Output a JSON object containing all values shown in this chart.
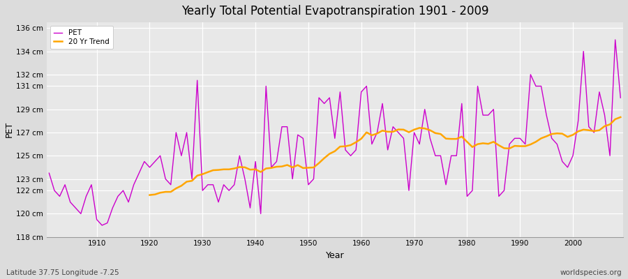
{
  "title": "Yearly Total Potential Evapotranspiration 1901 - 2009",
  "xlabel": "Year",
  "ylabel": "PET",
  "subtitle_left": "Latitude 37.75 Longitude -7.25",
  "subtitle_right": "worldspecies.org",
  "pet_color": "#cc00cc",
  "trend_color": "#ffa500",
  "background_color": "#dcdcdc",
  "plot_bg_color": "#e8e8e8",
  "ylim": [
    118,
    136.5
  ],
  "yticks": [
    118,
    120,
    122,
    123,
    125,
    127,
    129,
    131,
    132,
    134,
    136
  ],
  "xticks": [
    1910,
    1920,
    1930,
    1940,
    1950,
    1960,
    1970,
    1980,
    1990,
    2000
  ],
  "years": [
    1901,
    1902,
    1903,
    1904,
    1905,
    1906,
    1907,
    1908,
    1909,
    1910,
    1911,
    1912,
    1913,
    1914,
    1915,
    1916,
    1917,
    1918,
    1919,
    1920,
    1921,
    1922,
    1923,
    1924,
    1925,
    1926,
    1927,
    1928,
    1929,
    1930,
    1931,
    1932,
    1933,
    1934,
    1935,
    1936,
    1937,
    1938,
    1939,
    1940,
    1941,
    1942,
    1943,
    1944,
    1945,
    1946,
    1947,
    1948,
    1949,
    1950,
    1951,
    1952,
    1953,
    1954,
    1955,
    1956,
    1957,
    1958,
    1959,
    1960,
    1961,
    1962,
    1963,
    1964,
    1965,
    1966,
    1967,
    1968,
    1969,
    1970,
    1971,
    1972,
    1973,
    1974,
    1975,
    1976,
    1977,
    1978,
    1979,
    1980,
    1981,
    1982,
    1983,
    1984,
    1985,
    1986,
    1987,
    1988,
    1989,
    1990,
    1991,
    1992,
    1993,
    1994,
    1995,
    1996,
    1997,
    1998,
    1999,
    2000,
    2001,
    2002,
    2003,
    2004,
    2005,
    2006,
    2007,
    2008,
    2009
  ],
  "pet_values": [
    123.5,
    122.0,
    121.5,
    122.5,
    121.0,
    120.5,
    120.0,
    121.5,
    122.5,
    119.5,
    119.0,
    119.2,
    120.5,
    121.5,
    122.0,
    121.0,
    122.5,
    123.5,
    124.5,
    124.0,
    124.5,
    125.0,
    123.0,
    122.5,
    127.0,
    125.0,
    127.0,
    123.0,
    131.5,
    122.0,
    122.5,
    122.5,
    121.0,
    122.5,
    122.0,
    122.5,
    125.0,
    123.0,
    120.5,
    124.5,
    120.0,
    131.0,
    124.0,
    124.5,
    127.5,
    127.5,
    123.0,
    126.8,
    126.5,
    122.5,
    123.0,
    130.0,
    129.5,
    130.0,
    126.5,
    130.5,
    125.5,
    125.0,
    125.5,
    130.5,
    131.0,
    126.0,
    127.0,
    129.5,
    125.5,
    127.5,
    127.0,
    126.5,
    122.0,
    127.0,
    126.0,
    129.0,
    126.5,
    125.0,
    125.0,
    122.5,
    125.0,
    125.0,
    129.5,
    121.5,
    122.0,
    131.0,
    128.5,
    128.5,
    129.0,
    121.5,
    122.0,
    126.0,
    126.5,
    126.5,
    126.0,
    132.0,
    131.0,
    131.0,
    128.5,
    126.5,
    126.0,
    124.5,
    124.0,
    125.0,
    128.0,
    134.0,
    127.5,
    127.0,
    130.5,
    128.5,
    125.0,
    135.0,
    130.0
  ],
  "legend_pet": "PET",
  "legend_trend": "20 Yr Trend",
  "figsize": [
    9.0,
    4.0
  ],
  "dpi": 100
}
